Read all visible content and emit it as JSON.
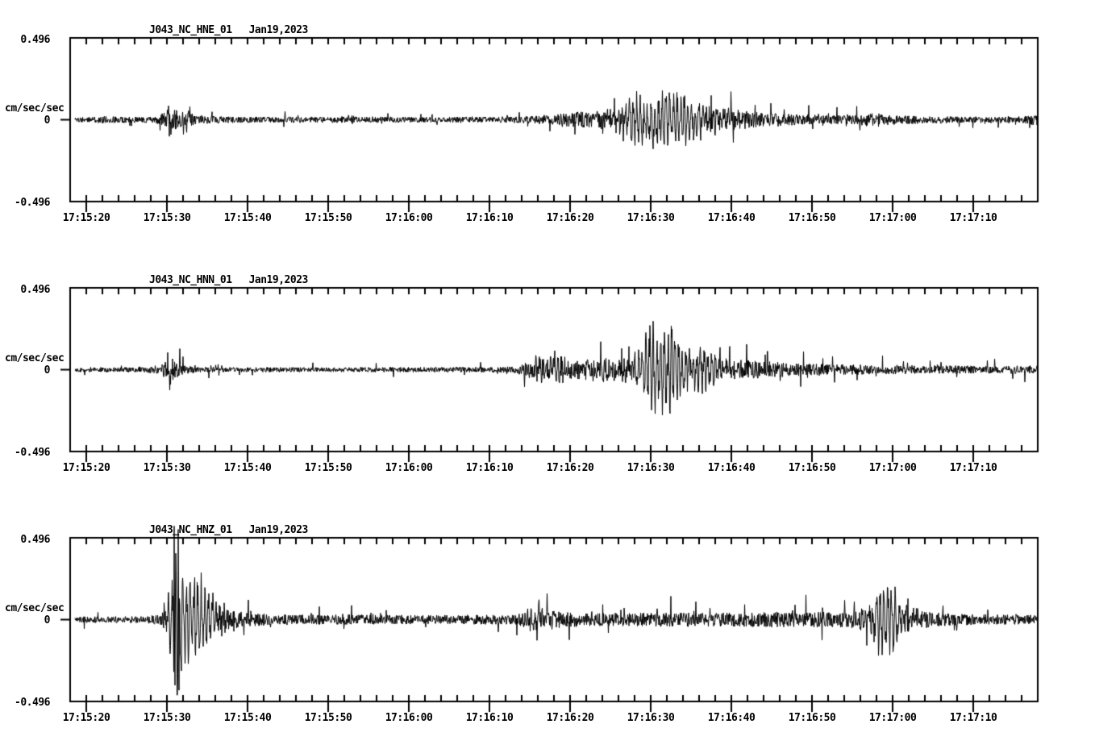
{
  "figure": {
    "background_color": "#ffffff",
    "trace_color": "#000000",
    "kind": "strong-motion seismogram viewer, 3 components"
  },
  "chart_data": [
    {
      "type": "line",
      "kind": "seismogram-trace",
      "station": "J043_NC_HNE_01",
      "date": "Jan19,2023",
      "ylabel": "cm/sec/sec",
      "ytick_labels": {
        "max": "0.496",
        "zero": "0",
        "min": "-0.496"
      },
      "ylim": [
        -0.496,
        0.496
      ],
      "x_start_time": "17:15:18",
      "x_end_time": "17:17:18",
      "x_major_tick_sec": 10,
      "x_minor_tick_sec": 2,
      "grid": false,
      "xtick_labels": [
        "17:15:20",
        "17:15:30",
        "17:15:40",
        "17:15:50",
        "17:16:00",
        "17:16:10",
        "17:16:20",
        "17:16:30",
        "17:16:40",
        "17:16:50",
        "17:17:00",
        "17:17:10"
      ],
      "envelope_t_amp": [
        [
          0.6,
          0.016
        ],
        [
          3,
          0.018
        ],
        [
          4.5,
          0.024
        ],
        [
          6,
          0.02
        ],
        [
          10.5,
          0.018
        ],
        [
          11.6,
          0.045
        ],
        [
          12.4,
          0.08
        ],
        [
          13.2,
          0.065
        ],
        [
          14.5,
          0.045
        ],
        [
          16,
          0.028
        ],
        [
          19,
          0.02
        ],
        [
          26,
          0.018
        ],
        [
          33.5,
          0.02
        ],
        [
          34.5,
          0.03
        ],
        [
          36,
          0.02
        ],
        [
          44,
          0.017
        ],
        [
          54,
          0.018
        ],
        [
          57,
          0.024
        ],
        [
          60,
          0.034
        ],
        [
          63,
          0.05
        ],
        [
          65,
          0.062
        ],
        [
          67,
          0.075
        ],
        [
          69,
          0.1
        ],
        [
          70.5,
          0.14
        ],
        [
          71.5,
          0.12
        ],
        [
          73,
          0.16
        ],
        [
          74.5,
          0.13
        ],
        [
          76,
          0.15
        ],
        [
          77.5,
          0.11
        ],
        [
          79.5,
          0.1
        ],
        [
          81.5,
          0.08
        ],
        [
          83.5,
          0.06
        ],
        [
          86,
          0.05
        ],
        [
          88,
          0.042
        ],
        [
          91,
          0.034
        ],
        [
          94,
          0.03
        ],
        [
          97,
          0.028
        ],
        [
          98.6,
          0.042
        ],
        [
          99.8,
          0.052
        ],
        [
          101,
          0.036
        ],
        [
          103,
          0.028
        ],
        [
          107,
          0.023
        ],
        [
          111,
          0.02
        ],
        [
          115,
          0.022
        ],
        [
          118,
          0.026
        ],
        [
          119.5,
          0.034
        ],
        [
          120,
          0.034
        ]
      ],
      "spikes_t_amp": [
        [
          12.2,
          0.085
        ],
        [
          12.5,
          -0.09
        ]
      ],
      "clip_amp": 0.24,
      "seed": 11
    },
    {
      "type": "line",
      "kind": "seismogram-trace",
      "station": "J043_NC_HNN_01",
      "date": "Jan19,2023",
      "ylabel": "cm/sec/sec",
      "ytick_labels": {
        "max": "0.496",
        "zero": "0",
        "min": "-0.496"
      },
      "ylim": [
        -0.496,
        0.496
      ],
      "x_start_time": "17:15:18",
      "x_end_time": "17:17:18",
      "x_major_tick_sec": 10,
      "x_minor_tick_sec": 2,
      "grid": false,
      "xtick_labels": [
        "17:15:20",
        "17:15:30",
        "17:15:40",
        "17:15:50",
        "17:16:00",
        "17:16:10",
        "17:16:20",
        "17:16:30",
        "17:16:40",
        "17:16:50",
        "17:17:00",
        "17:17:10"
      ],
      "envelope_t_amp": [
        [
          0.6,
          0.015
        ],
        [
          9,
          0.016
        ],
        [
          11.2,
          0.03
        ],
        [
          11.9,
          0.07
        ],
        [
          12.5,
          0.09
        ],
        [
          13.2,
          0.055
        ],
        [
          14.2,
          0.03
        ],
        [
          15.5,
          0.02
        ],
        [
          18,
          0.016
        ],
        [
          30,
          0.015
        ],
        [
          42,
          0.016
        ],
        [
          52,
          0.017
        ],
        [
          55,
          0.02
        ],
        [
          56.5,
          0.045
        ],
        [
          57.8,
          0.09
        ],
        [
          59.3,
          0.075
        ],
        [
          60.8,
          0.09
        ],
        [
          62.3,
          0.062
        ],
        [
          64,
          0.068
        ],
        [
          66,
          0.08
        ],
        [
          68,
          0.07
        ],
        [
          69.8,
          0.09
        ],
        [
          71,
          0.13
        ],
        [
          72,
          0.24
        ],
        [
          72.8,
          0.19
        ],
        [
          73.8,
          0.25
        ],
        [
          74.8,
          0.21
        ],
        [
          75.8,
          0.14
        ],
        [
          77.3,
          0.11
        ],
        [
          78.8,
          0.12
        ],
        [
          80.5,
          0.09
        ],
        [
          82.5,
          0.075
        ],
        [
          84.5,
          0.06
        ],
        [
          87,
          0.052
        ],
        [
          90,
          0.042
        ],
        [
          93,
          0.038
        ],
        [
          96,
          0.034
        ],
        [
          100,
          0.03
        ],
        [
          104,
          0.029
        ],
        [
          108,
          0.027
        ],
        [
          112,
          0.026
        ],
        [
          116,
          0.026
        ],
        [
          120,
          0.026
        ]
      ],
      "spikes_t_amp": [
        [
          12.1,
          0.105
        ],
        [
          12.35,
          -0.125
        ]
      ],
      "clip_amp": 0.3,
      "seed": 22
    },
    {
      "type": "line",
      "kind": "seismogram-trace",
      "station": "J043_NC_HNZ_01",
      "date": "Jan19,2023",
      "ylabel": "cm/sec/sec",
      "ytick_labels": {
        "max": "0.496",
        "zero": "0",
        "min": "-0.496"
      },
      "ylim": [
        -0.496,
        0.496
      ],
      "x_start_time": "17:15:18",
      "x_end_time": "17:17:18",
      "x_major_tick_sec": 10,
      "x_minor_tick_sec": 2,
      "grid": false,
      "xtick_labels": [
        "17:15:20",
        "17:15:30",
        "17:15:40",
        "17:15:50",
        "17:16:00",
        "17:16:10",
        "17:16:20",
        "17:16:30",
        "17:16:40",
        "17:16:50",
        "17:17:00",
        "17:17:10"
      ],
      "envelope_t_amp": [
        [
          0.6,
          0.02
        ],
        [
          5,
          0.02
        ],
        [
          9.5,
          0.022
        ],
        [
          11.3,
          0.035
        ],
        [
          12,
          0.09
        ],
        [
          12.6,
          0.26
        ],
        [
          13,
          0.44
        ],
        [
          13.4,
          0.34
        ],
        [
          13.9,
          0.28
        ],
        [
          14.6,
          0.2
        ],
        [
          15.4,
          0.22
        ],
        [
          16.4,
          0.14
        ],
        [
          17.2,
          0.17
        ],
        [
          18.2,
          0.12
        ],
        [
          19.2,
          0.08
        ],
        [
          20.5,
          0.055
        ],
        [
          22.5,
          0.042
        ],
        [
          25,
          0.036
        ],
        [
          29,
          0.032
        ],
        [
          34,
          0.032
        ],
        [
          40,
          0.029
        ],
        [
          46,
          0.029
        ],
        [
          52,
          0.031
        ],
        [
          55.5,
          0.034
        ],
        [
          56.6,
          0.06
        ],
        [
          57.6,
          0.12
        ],
        [
          58.6,
          0.09
        ],
        [
          59.8,
          0.062
        ],
        [
          61.5,
          0.048
        ],
        [
          65,
          0.042
        ],
        [
          70,
          0.044
        ],
        [
          75,
          0.046
        ],
        [
          80,
          0.043
        ],
        [
          84,
          0.046
        ],
        [
          87,
          0.052
        ],
        [
          89.5,
          0.046
        ],
        [
          93,
          0.05
        ],
        [
          96,
          0.055
        ],
        [
          98,
          0.07
        ],
        [
          99.5,
          0.1
        ],
        [
          100.8,
          0.17
        ],
        [
          101.8,
          0.19
        ],
        [
          102.8,
          0.12
        ],
        [
          104.2,
          0.08
        ],
        [
          106,
          0.055
        ],
        [
          108,
          0.042
        ],
        [
          112,
          0.036
        ],
        [
          116,
          0.032
        ],
        [
          120,
          0.03
        ]
      ],
      "spikes_t_amp": [
        [
          12.9,
          0.57
        ],
        [
          13.0,
          -0.4
        ],
        [
          13.15,
          0.3
        ],
        [
          13.42,
          0.55
        ],
        [
          13.52,
          -0.43
        ]
      ],
      "clip_amp": 0.46,
      "seed": 33
    }
  ]
}
